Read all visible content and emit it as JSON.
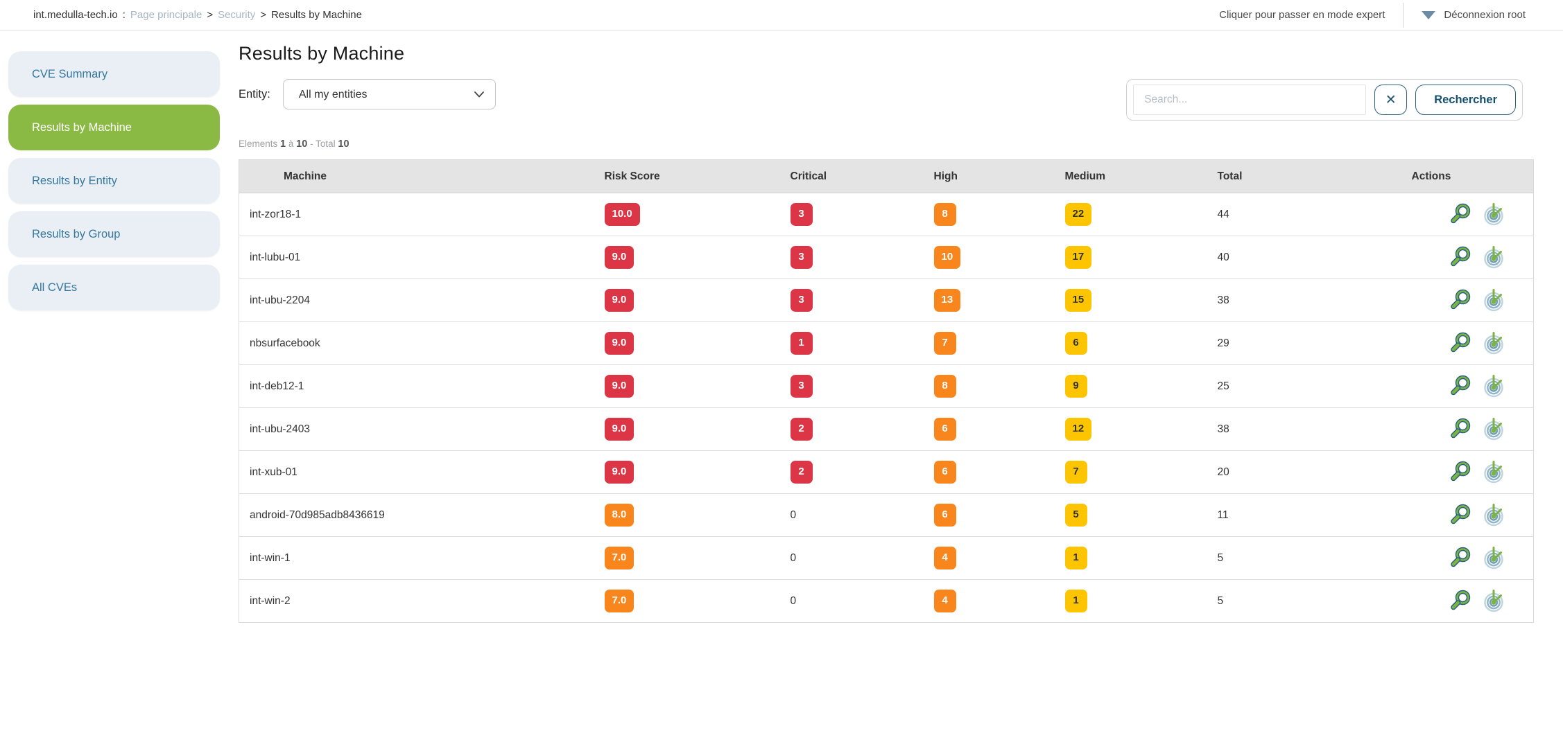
{
  "topbar": {
    "breadcrumb": {
      "host": "int.medulla-tech.io",
      "colon": ":",
      "links": [
        "Page principale",
        "Security"
      ],
      "separator": ">",
      "current": "Results by Machine"
    },
    "expert_mode": "Cliquer pour passer en mode expert",
    "logout": "Déconnexion root"
  },
  "sidebar": {
    "items": [
      {
        "label": "CVE Summary",
        "active": false
      },
      {
        "label": "Results by Machine",
        "active": true
      },
      {
        "label": "Results by Entity",
        "active": false
      },
      {
        "label": "Results by Group",
        "active": false
      },
      {
        "label": "All CVEs",
        "active": false
      }
    ]
  },
  "main": {
    "title": "Results by Machine",
    "entity_label": "Entity:",
    "entity_selected": "All my entities",
    "search": {
      "placeholder": "Search...",
      "clear_glyph": "✕",
      "submit": "Rechercher"
    },
    "pagination": {
      "elements_label": "Elements",
      "from": "1",
      "range_sep": "à",
      "to": "10",
      "total_label": "- Total",
      "total": "10"
    }
  },
  "table": {
    "columns": [
      "Machine",
      "Risk Score",
      "Critical",
      "High",
      "Medium",
      "Total",
      "Actions"
    ],
    "rows": [
      {
        "machine": "int-zor18-1",
        "risk": "10.0",
        "critical": 3,
        "high": 8,
        "medium": 22,
        "total": 44
      },
      {
        "machine": "int-lubu-01",
        "risk": "9.0",
        "critical": 3,
        "high": 10,
        "medium": 17,
        "total": 40
      },
      {
        "machine": "int-ubu-2204",
        "risk": "9.0",
        "critical": 3,
        "high": 13,
        "medium": 15,
        "total": 38
      },
      {
        "machine": "nbsurfacebook",
        "risk": "9.0",
        "critical": 1,
        "high": 7,
        "medium": 6,
        "total": 29
      },
      {
        "machine": "int-deb12-1",
        "risk": "9.0",
        "critical": 3,
        "high": 8,
        "medium": 9,
        "total": 25
      },
      {
        "machine": "int-ubu-2403",
        "risk": "9.0",
        "critical": 2,
        "high": 6,
        "medium": 12,
        "total": 38
      },
      {
        "machine": "int-xub-01",
        "risk": "9.0",
        "critical": 2,
        "high": 6,
        "medium": 7,
        "total": 20
      },
      {
        "machine": "android-70d985adb8436619",
        "risk": "8.0",
        "critical": 0,
        "high": 6,
        "medium": 5,
        "total": 11
      },
      {
        "machine": "int-win-1",
        "risk": "7.0",
        "critical": 0,
        "high": 4,
        "medium": 1,
        "total": 5
      },
      {
        "machine": "int-win-2",
        "risk": "7.0",
        "critical": 0,
        "high": 4,
        "medium": 1,
        "total": 5
      }
    ]
  },
  "colors": {
    "critical": "#dc3545",
    "high": "#f8861d",
    "medium": "#fdc500",
    "nav_active": "#8bba44",
    "accent_blue": "#2c5f7c",
    "icon_green": "#7db343"
  }
}
